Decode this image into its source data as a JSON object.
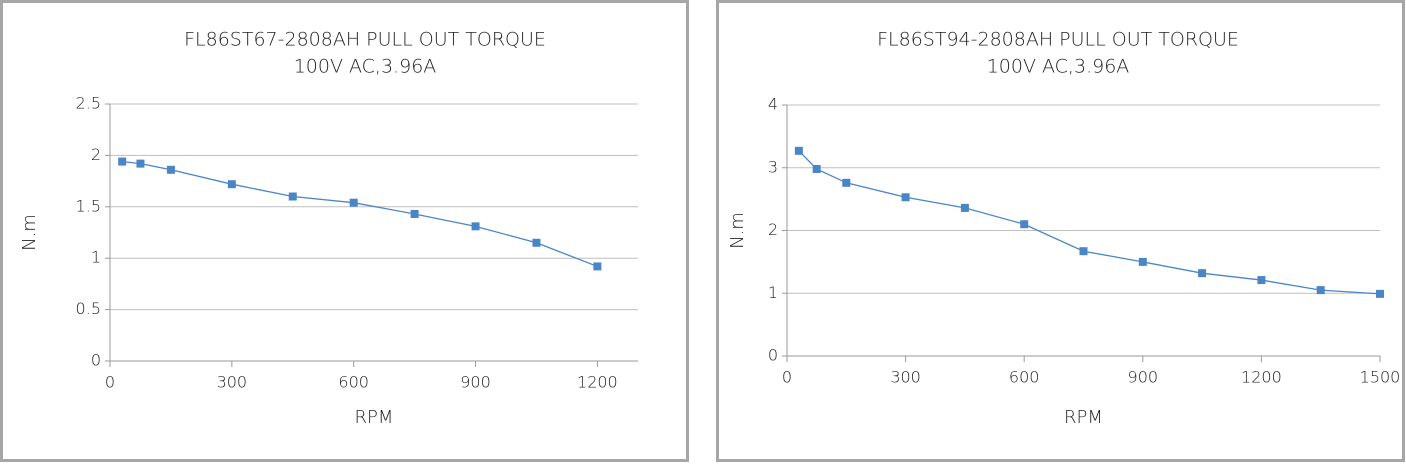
{
  "chart_data": [
    {
      "type": "line",
      "title": "FL86ST67-2808AH   PULL   OUT   TORQUE",
      "subtitle": "100V AC,3.96A",
      "xlabel": "RPM",
      "ylabel": "N.m",
      "x": [
        30,
        75,
        150,
        300,
        450,
        600,
        750,
        900,
        1050,
        1200
      ],
      "values": [
        1.94,
        1.92,
        1.86,
        1.72,
        1.6,
        1.54,
        1.43,
        1.31,
        1.15,
        0.92
      ],
      "color": "#4a86c5",
      "xlim": [
        0,
        1300
      ],
      "xticks": [
        0,
        300,
        600,
        900,
        1200
      ],
      "ylim": [
        0,
        2.5
      ],
      "yticks": [
        0,
        0.5,
        1,
        1.5,
        2,
        2.5
      ],
      "grid": true
    },
    {
      "type": "line",
      "title": "FL86ST94-2808AH   PULL   OUT   TORQUE",
      "subtitle": "100V AC,3.96A",
      "xlabel": "RPM",
      "ylabel": "N.m",
      "x": [
        30,
        75,
        150,
        300,
        450,
        600,
        750,
        900,
        1050,
        1200,
        1350,
        1500
      ],
      "values": [
        3.27,
        2.98,
        2.76,
        2.53,
        2.36,
        2.1,
        1.67,
        1.5,
        1.32,
        1.21,
        1.05,
        0.99
      ],
      "color": "#4a86c5",
      "xlim": [
        0,
        1500
      ],
      "xticks": [
        0,
        300,
        600,
        900,
        1200,
        1500
      ],
      "ylim": [
        0,
        4
      ],
      "yticks": [
        0,
        1,
        2,
        3,
        4
      ],
      "grid": true
    }
  ]
}
